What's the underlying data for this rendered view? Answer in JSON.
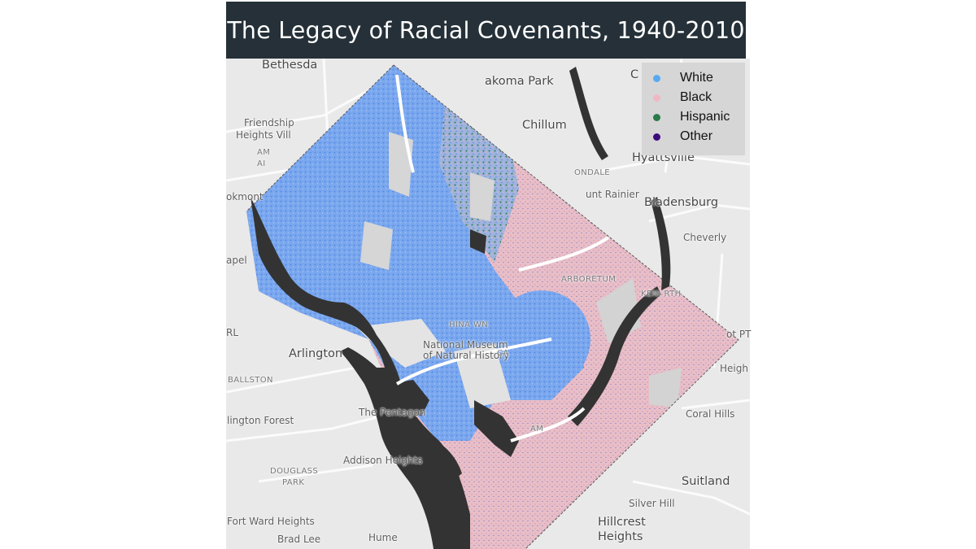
{
  "title": "The Legacy of Racial Covenants, 1940-2010",
  "legend": [
    {
      "label": "White",
      "color": "#58a9f2"
    },
    {
      "label": "Black",
      "color": "#f0b8c4"
    },
    {
      "label": "Hispanic",
      "color": "#2a7a4a"
    },
    {
      "label": "Other",
      "color": "#3d0c7c"
    }
  ],
  "colors": {
    "map_background": "#e9e9e9",
    "water": "#333333",
    "white_dots": "#6f9ee8",
    "black_dots": "#e9bcc6",
    "title_bar": "#253038"
  },
  "places": {
    "bethesda": "Bethesda",
    "takoma_park": "akoma Park",
    "chillum": "Chillum",
    "friendship_1": "Friendship",
    "friendship_2": "Heights Vill",
    "am_1": "AM",
    "am_2": "AI",
    "hyattsville": "Hyattsville",
    "ondale": "ONDALE",
    "mount_rainier": "unt Rainier",
    "bladensburg": "Bladensburg",
    "okmont": "okmont",
    "cheverly": "Cheverly",
    "apel": "apel",
    "arboretum": "ARBORETUM",
    "kenilworth": "KENI  RTH",
    "rl": "RL",
    "chinatown": "HINA  WN",
    "national_museum_1": "National Museum",
    "national_museum_2": "of Natural History",
    "arlington": "Arlington",
    "ballston": "BALLSTON",
    "capitol": "CA",
    "pt": "ot PT",
    "heights_edge": "Heigh",
    "pentagon": "The Pentagon",
    "arlington_forest": "lington Forest",
    "coral_hills": "Coral Hills",
    "am_lower": "AM",
    "douglass_park_1": "DOUGLASS",
    "douglass_park_2": "PARK",
    "addison_heights": "Addison Heights",
    "suitland": "Suitland",
    "silver_hill": "Silver Hill",
    "fort_ward_heights": "Fort Ward Heights",
    "hillcrest_1": "Hillcrest",
    "hillcrest_2": "Heights",
    "brad_lee": "Brad Lee",
    "hume": "Hume",
    "c": "C"
  }
}
